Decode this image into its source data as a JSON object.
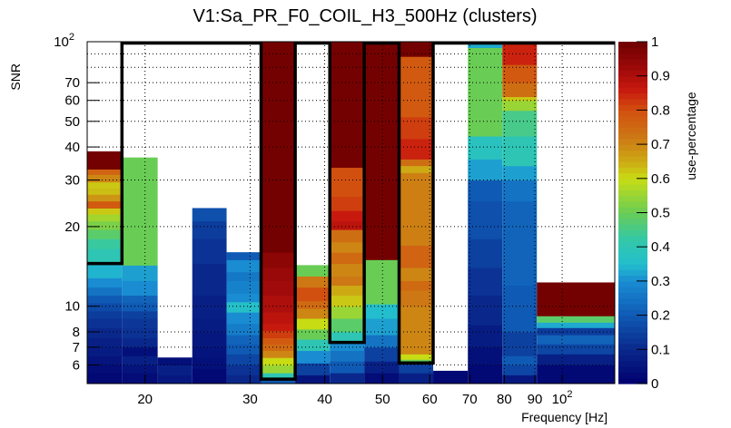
{
  "chart_data": {
    "type": "heatmap",
    "title": "V1:Sa_PR_F0_COIL_H3_500Hz (clusters)",
    "xlabel": "Frequency [Hz]",
    "ylabel": "SNR",
    "zlabel": "use-percentage",
    "x_scale": "log",
    "y_scale": "log",
    "xlim": [
      16,
      122.5
    ],
    "ylim": [
      5.1,
      100
    ],
    "zlim": [
      0,
      1
    ],
    "grid": true,
    "colorbar": "right",
    "x_ticks": [
      {
        "value": 20,
        "label": "20"
      },
      {
        "value": 30,
        "label": "30"
      },
      {
        "value": 40,
        "label": "40"
      },
      {
        "value": 50,
        "label": "50"
      },
      {
        "value": 60,
        "label": "60"
      },
      {
        "value": 70,
        "label": "70"
      },
      {
        "value": 80,
        "label": "80"
      },
      {
        "value": 90,
        "label": "90"
      },
      {
        "value": 100,
        "label": "10",
        "sup": "2"
      }
    ],
    "y_ticks": [
      {
        "value": 6,
        "label": "6"
      },
      {
        "value": 7,
        "label": "7"
      },
      {
        "value": 8,
        "label": "8"
      },
      {
        "value": 10,
        "label": "10"
      },
      {
        "value": 20,
        "label": "20"
      },
      {
        "value": 30,
        "label": "30"
      },
      {
        "value": 40,
        "label": "40"
      },
      {
        "value": 50,
        "label": "50"
      },
      {
        "value": 60,
        "label": "60"
      },
      {
        "value": 70,
        "label": "70"
      },
      {
        "value": 100,
        "label": "10",
        "sup": "2"
      }
    ],
    "y_grid_extra": [
      80,
      90
    ],
    "z_ticks": [
      {
        "value": 0,
        "label": "0"
      },
      {
        "value": 0.1,
        "label": "0.1"
      },
      {
        "value": 0.2,
        "label": "0.2"
      },
      {
        "value": 0.3,
        "label": "0.3"
      },
      {
        "value": 0.4,
        "label": "0.4"
      },
      {
        "value": 0.5,
        "label": "0.5"
      },
      {
        "value": 0.6,
        "label": "0.6"
      },
      {
        "value": 0.7,
        "label": "0.7"
      },
      {
        "value": 0.8,
        "label": "0.8"
      },
      {
        "value": 0.9,
        "label": "0.9"
      },
      {
        "value": 1,
        "label": "1"
      }
    ],
    "columns": [
      {
        "f_lo": 16.0,
        "f_hi": 18.3,
        "snr_max": 38.5,
        "cells": [
          [
            5.1,
            5.6,
            0.02
          ],
          [
            5.6,
            6.0,
            0.03
          ],
          [
            6.0,
            6.5,
            0.05
          ],
          [
            6.5,
            7.0,
            0.07
          ],
          [
            7.0,
            7.6,
            0.08
          ],
          [
            7.6,
            8.3,
            0.1
          ],
          [
            8.3,
            9.0,
            0.12
          ],
          [
            9.0,
            9.6,
            0.14
          ],
          [
            9.6,
            10.3,
            0.17
          ],
          [
            10.3,
            11.0,
            0.2
          ],
          [
            11.0,
            11.8,
            0.25
          ],
          [
            11.8,
            12.8,
            0.3
          ],
          [
            12.8,
            14.5,
            0.34
          ],
          [
            14.5,
            16.5,
            0.4
          ],
          [
            16.5,
            18.0,
            0.43
          ],
          [
            18.0,
            19.5,
            0.48
          ],
          [
            19.5,
            21.0,
            0.52
          ],
          [
            21.0,
            22.3,
            0.56
          ],
          [
            22.3,
            23.5,
            0.62
          ],
          [
            23.5,
            25.0,
            0.78
          ],
          [
            25.0,
            26.5,
            0.68
          ],
          [
            26.5,
            28.0,
            0.63
          ],
          [
            28.0,
            29.5,
            0.62
          ],
          [
            29.5,
            31.5,
            0.7
          ],
          [
            31.5,
            33.0,
            0.76
          ],
          [
            33.0,
            38.5,
            0.99
          ]
        ]
      },
      {
        "f_lo": 18.3,
        "f_hi": 21.0,
        "snr_max": 36.5,
        "cells": [
          [
            5.1,
            5.6,
            0.03
          ],
          [
            5.6,
            6.0,
            0.05
          ],
          [
            6.0,
            6.5,
            0.08
          ],
          [
            6.5,
            7.0,
            0.04
          ],
          [
            7.0,
            7.6,
            0.1
          ],
          [
            7.6,
            8.3,
            0.12
          ],
          [
            8.3,
            9.0,
            0.13
          ],
          [
            9.0,
            9.6,
            0.15
          ],
          [
            9.6,
            10.3,
            0.2
          ],
          [
            10.3,
            11.0,
            0.22
          ],
          [
            11.0,
            12.5,
            0.3
          ],
          [
            12.5,
            14.3,
            0.32
          ],
          [
            14.3,
            36.5,
            0.5
          ]
        ]
      },
      {
        "f_lo": 21.0,
        "f_hi": 24.0,
        "snr_max": 6.4,
        "cells": [
          [
            5.1,
            5.5,
            0.06
          ],
          [
            5.5,
            6.0,
            0.08
          ],
          [
            6.0,
            6.4,
            0.04
          ]
        ]
      },
      {
        "f_lo": 24.0,
        "f_hi": 27.4,
        "snr_max": 23.5,
        "cells": [
          [
            5.1,
            5.8,
            0.02
          ],
          [
            5.8,
            6.4,
            0.04
          ],
          [
            6.4,
            7.0,
            0.05
          ],
          [
            7.0,
            8.0,
            0.06
          ],
          [
            8.0,
            9.0,
            0.07
          ],
          [
            9.0,
            11.0,
            0.08
          ],
          [
            11.0,
            14.5,
            0.1
          ],
          [
            14.5,
            18.0,
            0.12
          ],
          [
            18.0,
            21.0,
            0.14
          ],
          [
            21.0,
            23.5,
            0.18
          ]
        ]
      },
      {
        "f_lo": 27.4,
        "f_hi": 31.3,
        "snr_max": 16.0,
        "cells": [
          [
            5.1,
            5.5,
            0.1
          ],
          [
            5.5,
            6.0,
            0.12
          ],
          [
            6.0,
            6.6,
            0.16
          ],
          [
            6.6,
            7.2,
            0.2
          ],
          [
            7.2,
            7.8,
            0.22
          ],
          [
            7.8,
            8.6,
            0.27
          ],
          [
            8.6,
            9.5,
            0.3
          ],
          [
            9.5,
            10.4,
            0.36
          ],
          [
            10.4,
            11.2,
            0.3
          ],
          [
            11.2,
            12.5,
            0.28
          ],
          [
            12.5,
            13.5,
            0.26
          ],
          [
            13.5,
            15.0,
            0.3
          ],
          [
            15.0,
            16.0,
            0.2
          ]
        ]
      },
      {
        "f_lo": 31.3,
        "f_hi": 35.7,
        "snr_max": 100,
        "cells": [
          [
            5.1,
            5.3,
            0.2
          ],
          [
            5.3,
            5.6,
            0.4
          ],
          [
            5.6,
            6.0,
            0.55
          ],
          [
            6.0,
            6.4,
            0.6
          ],
          [
            6.4,
            6.8,
            0.7
          ],
          [
            6.8,
            7.2,
            0.75
          ],
          [
            7.2,
            7.6,
            0.78
          ],
          [
            7.6,
            8.1,
            0.82
          ],
          [
            8.1,
            8.6,
            0.86
          ],
          [
            8.6,
            9.5,
            0.88
          ],
          [
            9.5,
            11.0,
            0.9
          ],
          [
            11.0,
            12.5,
            0.92
          ],
          [
            12.5,
            14.0,
            0.93
          ],
          [
            14.0,
            16.0,
            0.95
          ],
          [
            16.0,
            100,
            0.99
          ]
        ]
      },
      {
        "f_lo": 35.7,
        "f_hi": 40.8,
        "snr_max": 14.3,
        "cells": [
          [
            5.1,
            5.5,
            0.05
          ],
          [
            5.5,
            6.1,
            0.15
          ],
          [
            6.1,
            6.8,
            0.3
          ],
          [
            6.8,
            7.5,
            0.4
          ],
          [
            7.5,
            8.2,
            0.5
          ],
          [
            8.2,
            9.0,
            0.6
          ],
          [
            9.0,
            9.8,
            0.7
          ],
          [
            9.8,
            10.5,
            0.75
          ],
          [
            10.5,
            11.8,
            0.8
          ],
          [
            11.8,
            13.0,
            0.72
          ],
          [
            13.0,
            14.3,
            0.5
          ]
        ]
      },
      {
        "f_lo": 40.8,
        "f_hi": 46.6,
        "snr_max": 100,
        "cells": [
          [
            5.1,
            5.6,
            0.1
          ],
          [
            5.6,
            6.2,
            0.2
          ],
          [
            6.2,
            6.8,
            0.25
          ],
          [
            6.8,
            7.3,
            0.3
          ],
          [
            7.3,
            8.0,
            0.4
          ],
          [
            8.0,
            9.0,
            0.48
          ],
          [
            9.0,
            10.0,
            0.55
          ],
          [
            10.0,
            11.0,
            0.62
          ],
          [
            11.0,
            12.0,
            0.65
          ],
          [
            12.0,
            13.0,
            0.72
          ],
          [
            13.0,
            14.5,
            0.7
          ],
          [
            14.5,
            16.0,
            0.75
          ],
          [
            16.0,
            17.5,
            0.7
          ],
          [
            17.5,
            19.5,
            0.74
          ],
          [
            19.5,
            21.0,
            0.88
          ],
          [
            21.0,
            23.0,
            0.86
          ],
          [
            23.0,
            26.0,
            0.82
          ],
          [
            26.0,
            33.5,
            0.8
          ],
          [
            33.5,
            100,
            0.99
          ]
        ]
      },
      {
        "f_lo": 46.6,
        "f_hi": 53.3,
        "snr_max": 100,
        "cells": [
          [
            5.1,
            5.6,
            0.03
          ],
          [
            5.6,
            6.2,
            0.08
          ],
          [
            6.2,
            7.0,
            0.15
          ],
          [
            7.0,
            7.8,
            0.25
          ],
          [
            7.8,
            9.0,
            0.32
          ],
          [
            9.0,
            10.2,
            0.35
          ],
          [
            10.2,
            15.0,
            0.5
          ],
          [
            15.0,
            100,
            0.99
          ]
        ]
      },
      {
        "f_lo": 53.3,
        "f_hi": 60.8,
        "snr_max": 100,
        "cells": [
          [
            5.1,
            5.6,
            0.08
          ],
          [
            5.6,
            6.1,
            0.15
          ],
          [
            6.1,
            6.3,
            0.5
          ],
          [
            6.3,
            6.6,
            0.6
          ],
          [
            6.6,
            10.0,
            0.7
          ],
          [
            10.0,
            11.5,
            0.72
          ],
          [
            11.5,
            12.5,
            0.75
          ],
          [
            12.5,
            14.0,
            0.7
          ],
          [
            14.0,
            17.0,
            0.76
          ],
          [
            17.0,
            32.0,
            0.71
          ],
          [
            32.0,
            34.0,
            0.65
          ],
          [
            34.0,
            36.0,
            0.74
          ],
          [
            36.0,
            43.0,
            0.85
          ],
          [
            43.0,
            52.0,
            0.82
          ],
          [
            52.0,
            88.0,
            0.78
          ],
          [
            88.0,
            100,
            0.99
          ]
        ]
      },
      {
        "f_lo": 60.8,
        "f_hi": 69.5,
        "snr_max": 5.7,
        "cells": [
          [
            5.1,
            5.7,
            0.02
          ]
        ]
      },
      {
        "f_lo": 69.5,
        "f_hi": 79.4,
        "snr_max": 100,
        "cells": [
          [
            5.1,
            6.0,
            0.02
          ],
          [
            6.0,
            7.0,
            0.04
          ],
          [
            7.0,
            8.5,
            0.07
          ],
          [
            8.5,
            11.0,
            0.1
          ],
          [
            11.0,
            14.0,
            0.12
          ],
          [
            14.0,
            18.0,
            0.15
          ],
          [
            18.0,
            25.0,
            0.18
          ],
          [
            25.0,
            30.0,
            0.2
          ],
          [
            30.0,
            36.0,
            0.32
          ],
          [
            36.0,
            44.0,
            0.38
          ],
          [
            44.0,
            95.0,
            0.5
          ],
          [
            95.0,
            100,
            0.33
          ]
        ]
      },
      {
        "f_lo": 79.4,
        "f_hi": 90.7,
        "snr_max": 100,
        "cells": [
          [
            5.1,
            5.5,
            0.06
          ],
          [
            5.5,
            6.0,
            0.16
          ],
          [
            6.0,
            6.5,
            0.2
          ],
          [
            6.5,
            8.0,
            0.15
          ],
          [
            8.0,
            12.0,
            0.2
          ],
          [
            12.0,
            25.0,
            0.22
          ],
          [
            25.0,
            30.0,
            0.25
          ],
          [
            30.0,
            34.0,
            0.32
          ],
          [
            34.0,
            44.0,
            0.4
          ],
          [
            44.0,
            55.0,
            0.45
          ],
          [
            55.0,
            60.0,
            0.55
          ],
          [
            60.0,
            62.0,
            0.62
          ],
          [
            62.0,
            70.0,
            0.74
          ],
          [
            70.0,
            82.0,
            0.78
          ],
          [
            82.0,
            100,
            0.85
          ]
        ]
      },
      {
        "f_lo": 90.7,
        "f_hi": 122.5,
        "snr_max": 12.3,
        "cells": [
          [
            5.1,
            6.0,
            0.02
          ],
          [
            6.0,
            6.6,
            0.08
          ],
          [
            6.6,
            7.2,
            0.16
          ],
          [
            7.2,
            7.8,
            0.22
          ],
          [
            7.8,
            8.3,
            0.14
          ],
          [
            8.3,
            8.7,
            0.33
          ],
          [
            8.7,
            9.2,
            0.48
          ],
          [
            9.2,
            12.3,
            0.99
          ]
        ]
      }
    ],
    "outline": [
      [
        16.0,
        14.5
      ],
      [
        18.3,
        14.5
      ],
      [
        18.3,
        100
      ],
      [
        31.3,
        100
      ],
      [
        31.3,
        5.3
      ],
      [
        35.7,
        5.3
      ],
      [
        35.7,
        100
      ],
      [
        40.8,
        100
      ],
      [
        40.8,
        7.3
      ],
      [
        46.6,
        7.3
      ],
      [
        46.6,
        100
      ],
      [
        53.3,
        100
      ],
      [
        53.3,
        6.1
      ],
      [
        60.8,
        6.1
      ],
      [
        60.8,
        100
      ],
      [
        122.5,
        100
      ]
    ]
  }
}
